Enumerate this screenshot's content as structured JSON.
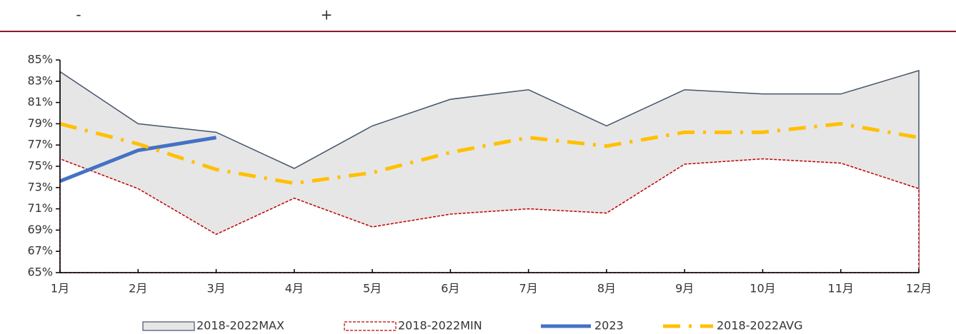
{
  "header": {
    "left": "-",
    "right": "+"
  },
  "chart_data": {
    "type": "line",
    "categories": [
      "1月",
      "2月",
      "3月",
      "4月",
      "5月",
      "6月",
      "7月",
      "8月",
      "9月",
      "10月",
      "11月",
      "12月"
    ],
    "series": [
      {
        "name": "2018-2022MAX",
        "color": "#44546a",
        "fill": "#e7e6e6",
        "values": [
          83.9,
          79.0,
          78.2,
          74.8,
          78.8,
          81.3,
          82.2,
          78.8,
          82.2,
          81.8,
          81.8,
          84.0
        ]
      },
      {
        "name": "2018-2022MIN",
        "color": "#c00000",
        "values": [
          75.7,
          72.9,
          68.6,
          72.0,
          69.3,
          70.5,
          71.0,
          70.6,
          75.2,
          75.7,
          75.3,
          72.9
        ]
      },
      {
        "name": "2023",
        "color": "#4472c4",
        "values": [
          73.6,
          76.5,
          77.7,
          null,
          null,
          null,
          null,
          null,
          null,
          null,
          null,
          null
        ]
      },
      {
        "name": "2018-2022AVG",
        "color": "#ffc000",
        "values": [
          79.0,
          77.1,
          74.7,
          73.4,
          74.4,
          76.3,
          77.7,
          76.9,
          78.2,
          78.2,
          79.0,
          77.7
        ]
      }
    ],
    "ylim": [
      65,
      85
    ],
    "yticks": [
      {
        "value": 65,
        "label": "65%"
      },
      {
        "value": 67,
        "label": "67%"
      },
      {
        "value": 69,
        "label": "69%"
      },
      {
        "value": 71,
        "label": "71%"
      },
      {
        "value": 73,
        "label": "73%"
      },
      {
        "value": 75,
        "label": "75%"
      },
      {
        "value": 77,
        "label": "77%"
      },
      {
        "value": 79,
        "label": "79%"
      },
      {
        "value": 81,
        "label": "81%"
      },
      {
        "value": 83,
        "label": "83%"
      },
      {
        "value": 85,
        "label": "85%"
      }
    ],
    "legend": "bottom"
  }
}
